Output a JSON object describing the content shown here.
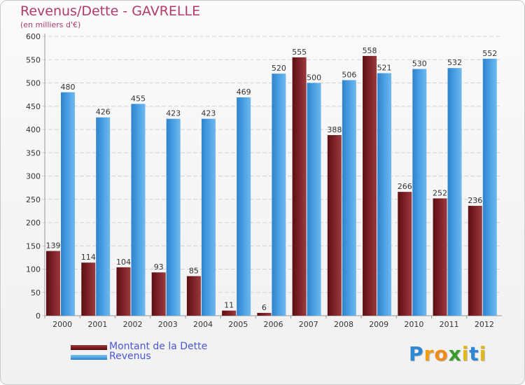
{
  "chart_data": {
    "type": "bar",
    "title": "Revenus/Dette - GAVRELLE",
    "subtitle": "(en milliers d'€)",
    "categories": [
      "2000",
      "2001",
      "2002",
      "2003",
      "2004",
      "2005",
      "2006",
      "2007",
      "2008",
      "2009",
      "2010",
      "2011",
      "2012"
    ],
    "series": [
      {
        "name": "Montant de la Dette",
        "color": "#7a1a1f",
        "values": [
          139,
          114,
          104,
          93,
          85,
          11,
          6,
          555,
          388,
          558,
          266,
          252,
          236
        ]
      },
      {
        "name": "Revenus",
        "color": "#4aa0e3",
        "values": [
          480,
          426,
          455,
          423,
          423,
          469,
          520,
          500,
          506,
          521,
          530,
          532,
          552
        ]
      }
    ],
    "ylim": [
      0,
      600
    ],
    "yticks": [
      0,
      50,
      100,
      150,
      200,
      250,
      300,
      350,
      400,
      450,
      500,
      550,
      600
    ],
    "grid": true,
    "legend": "bottom-left"
  },
  "brand": {
    "letters": [
      "P",
      "r",
      "o",
      "x",
      "i",
      "t",
      "i"
    ],
    "colors": [
      "#2e86d6",
      "#f39c12",
      "#f08a1c",
      "#3a9a2e",
      "#e0b81b",
      "#2e86d6",
      "#e0b81b"
    ]
  }
}
